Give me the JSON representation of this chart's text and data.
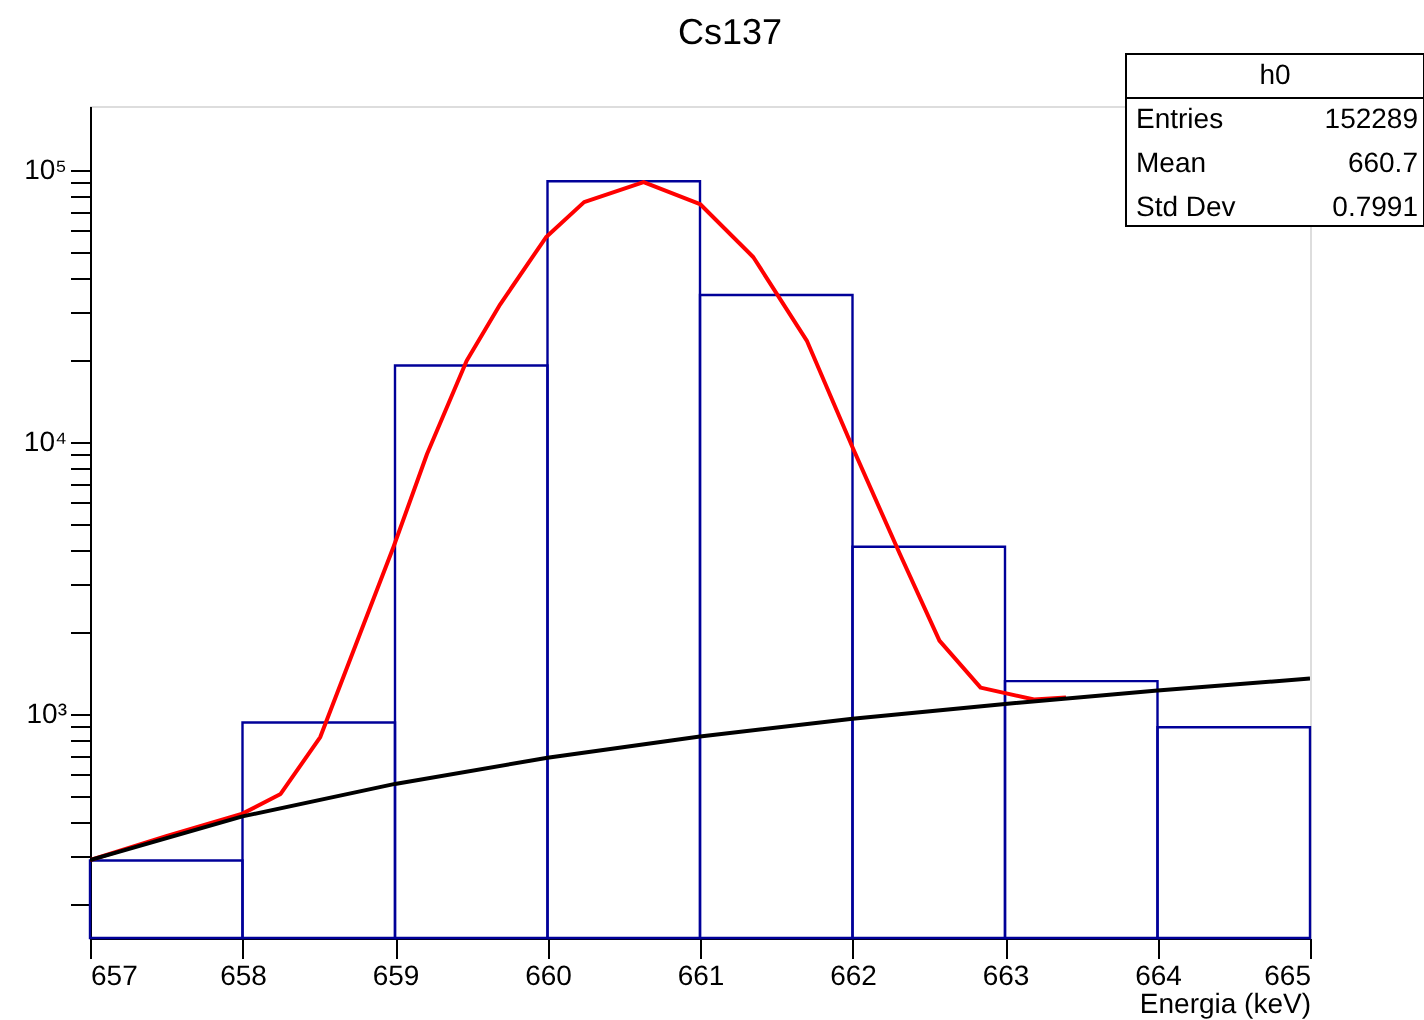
{
  "chart_data": {
    "type": "histogram",
    "title": "Cs137",
    "xlabel": "Energia (keV)",
    "bins": [
      657,
      658,
      659,
      660,
      661,
      662,
      663,
      664,
      665
    ],
    "values": [
      289,
      930,
      19100,
      91000,
      34700,
      4120,
      1320,
      894
    ],
    "color": "#000099",
    "series": [
      {
        "type": "line",
        "color": "#ff0000",
        "x": [
          657,
          657.5,
          658,
          658.25,
          658.51,
          658.77,
          658.99,
          659.21,
          659.47,
          659.69,
          659.99,
          660.24,
          660.63,
          661.0,
          661.35,
          661.7,
          662.0,
          662.31,
          662.57,
          662.84,
          663.19,
          663.4
        ],
        "values": [
          290,
          355,
          430,
          508,
          822,
          1968,
          4110,
          9030,
          19900,
          32100,
          56600,
          76200,
          90300,
          75000,
          47800,
          23600,
          9560,
          3880,
          1860,
          1250,
          1130,
          1150
        ]
      },
      {
        "type": "line",
        "color": "#000000",
        "x": [
          657,
          658,
          659,
          660,
          661,
          662,
          663,
          664,
          665
        ],
        "values": [
          290,
          420,
          553,
          690,
          826,
          960,
          1088,
          1220,
          1350
        ]
      }
    ],
    "annotations": [
      "h0",
      "Entries",
      "152289",
      "Mean",
      "660.7",
      "Std Dev",
      "0.7991"
    ],
    "xlim": [
      657,
      665
    ],
    "xticks": [
      657,
      658,
      659,
      660,
      661,
      662,
      663,
      664,
      665
    ],
    "ylim": [
      150,
      172000
    ],
    "yticks": [
      {
        "value": 200,
        "label": null
      },
      {
        "value": 300,
        "label": null
      },
      {
        "value": 400,
        "label": null
      },
      {
        "value": 500,
        "label": null
      },
      {
        "value": 600,
        "label": null
      },
      {
        "value": 700,
        "label": null
      },
      {
        "value": 800,
        "label": null
      },
      {
        "value": 900,
        "label": null
      },
      {
        "value": 1000,
        "label": "10³"
      },
      {
        "value": 2000,
        "label": null
      },
      {
        "value": 3000,
        "label": null
      },
      {
        "value": 4000,
        "label": null
      },
      {
        "value": 5000,
        "label": null
      },
      {
        "value": 6000,
        "label": null
      },
      {
        "value": 7000,
        "label": null
      },
      {
        "value": 8000,
        "label": null
      },
      {
        "value": 9000,
        "label": null
      },
      {
        "value": 10000,
        "label": "10⁴"
      },
      {
        "value": 20000,
        "label": null
      },
      {
        "value": 30000,
        "label": null
      },
      {
        "value": 40000,
        "label": null
      },
      {
        "value": 50000,
        "label": null
      },
      {
        "value": 60000,
        "label": null
      },
      {
        "value": 70000,
        "label": null
      },
      {
        "value": 80000,
        "label": null
      },
      {
        "value": 90000,
        "label": null
      },
      {
        "value": 100000,
        "label": "10⁵"
      }
    ],
    "log": true,
    "grid": false
  }
}
